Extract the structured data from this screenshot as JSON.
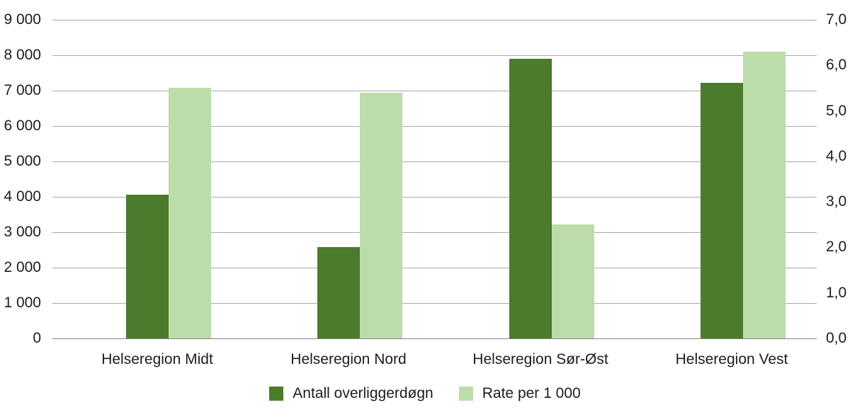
{
  "chart_data": {
    "type": "bar",
    "title": "",
    "categories": [
      "Helseregion Midt",
      "Helseregion Nord",
      "Helseregion Sør-Øst",
      "Helseregion Vest"
    ],
    "series": [
      {
        "name": "Antall overliggerdøgn",
        "axis": "left",
        "color": "#4a7c2b",
        "values": [
          4060,
          2580,
          7900,
          7220
        ]
      },
      {
        "name": "Rate per 1 000",
        "axis": "right",
        "color": "#bcdcaa",
        "values": [
          5.5,
          5.4,
          2.5,
          6.3
        ]
      }
    ],
    "left_axis": {
      "min": 0,
      "max": 9000,
      "step": 1000,
      "tick_labels": [
        "0",
        "1 000",
        "2 000",
        "3 000",
        "4 000",
        "5 000",
        "6 000",
        "7 000",
        "8 000",
        "9 000"
      ]
    },
    "right_axis": {
      "min": 0,
      "max": 7,
      "step": 1,
      "tick_labels": [
        "0,0",
        "1,0",
        "2,0",
        "3,0",
        "4,0",
        "5,0",
        "6,0",
        "7,0"
      ]
    },
    "grid": true,
    "legend_position": "bottom",
    "gridline_color": "#a8a8a8",
    "axis_line_color": "#868686",
    "text_color": "#1d1d1b",
    "background_color": "#ffffff"
  }
}
